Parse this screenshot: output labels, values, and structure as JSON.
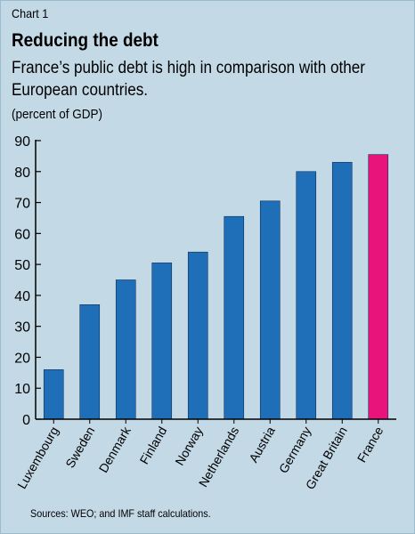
{
  "header": {
    "chart_number": "Chart 1",
    "title": "Reducing the debt",
    "subtitle": "France’s public debt is high in comparison with other European countries.",
    "unit": "(percent of GDP)"
  },
  "footer": {
    "source": "Sources: WEO; and IMF staff calculations."
  },
  "colors": {
    "background": "#c3d9e6",
    "bar": "#1f6fb8",
    "highlight_bar": "#e8147c",
    "axis": "#000000"
  },
  "chart_data": {
    "type": "bar",
    "title": "Reducing the debt",
    "subtitle": "France’s public debt is high in comparison with other European countries.",
    "ylabel": "(percent of GDP)",
    "xlabel": "",
    "categories": [
      "Luxembourg",
      "Sweden",
      "Denmark",
      "Finland",
      "Norway",
      "Netherlands",
      "Austria",
      "Germany",
      "Great Britain",
      "France"
    ],
    "values": [
      16,
      37,
      45,
      50.5,
      54,
      65.5,
      70.5,
      80,
      83,
      85.5
    ],
    "highlight": "France",
    "ylim": [
      0,
      90
    ],
    "yticks": [
      0,
      10,
      20,
      30,
      40,
      50,
      60,
      70,
      80,
      90
    ],
    "grid": false,
    "legend": "none"
  }
}
